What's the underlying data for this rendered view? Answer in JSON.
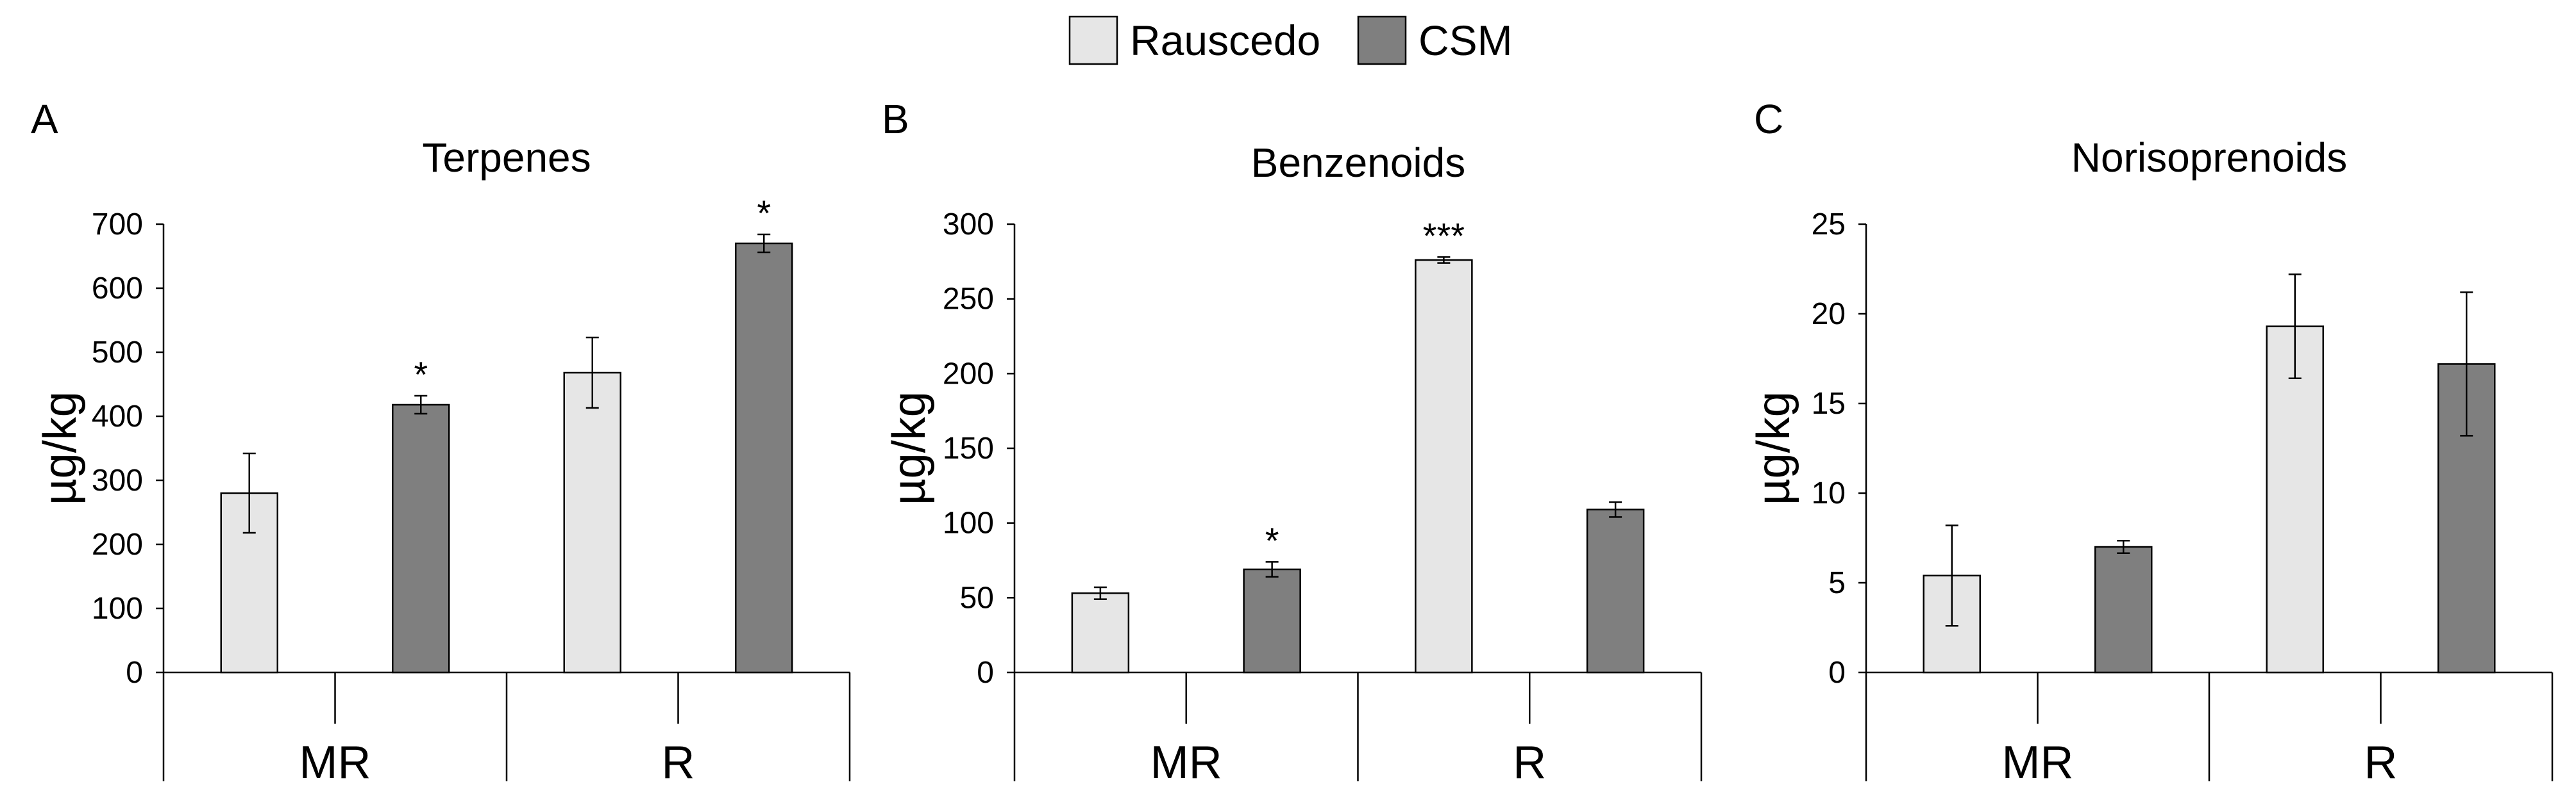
{
  "legend": {
    "items": [
      {
        "label": "Rauscedo",
        "color": "#e6e6e6"
      },
      {
        "label": "CSM",
        "color": "#7f7f7f"
      }
    ]
  },
  "chart_data": [
    {
      "panel": "A",
      "type": "bar",
      "title": "Terpenes",
      "ylabel": "µg/kg",
      "xlabel": "",
      "ylim": [
        0,
        700
      ],
      "yticks": [
        0,
        100,
        200,
        300,
        400,
        500,
        600,
        700
      ],
      "categories": [
        "MR",
        "R"
      ],
      "series": [
        {
          "name": "Rauscedo",
          "values": [
            280,
            468
          ],
          "errors": [
            62,
            55
          ],
          "significance": [
            "",
            ""
          ]
        },
        {
          "name": "CSM",
          "values": [
            418,
            670
          ],
          "errors": [
            14,
            14
          ],
          "significance": [
            "*",
            "*"
          ]
        }
      ]
    },
    {
      "panel": "B",
      "type": "bar",
      "title": "Benzenoids",
      "ylabel": "µg/kg",
      "xlabel": "",
      "ylim": [
        0,
        300
      ],
      "yticks": [
        0,
        50,
        100,
        150,
        200,
        250,
        300
      ],
      "categories": [
        "MR",
        "R"
      ],
      "series": [
        {
          "name": "Rauscedo",
          "values": [
            53,
            276
          ],
          "errors": [
            4,
            2
          ],
          "significance": [
            "",
            "***"
          ]
        },
        {
          "name": "CSM",
          "values": [
            69,
            109
          ],
          "errors": [
            5,
            5
          ],
          "significance": [
            "*",
            ""
          ]
        }
      ]
    },
    {
      "panel": "C",
      "type": "bar",
      "title": "Norisoprenoids",
      "ylabel": "µg/kg",
      "xlabel": "",
      "ylim": [
        0,
        25
      ],
      "yticks": [
        0,
        5,
        10,
        15,
        20,
        25
      ],
      "categories": [
        "MR",
        "R"
      ],
      "series": [
        {
          "name": "Rauscedo",
          "values": [
            5.4,
            19.3
          ],
          "errors": [
            2.8,
            2.9
          ],
          "significance": [
            "",
            ""
          ]
        },
        {
          "name": "CSM",
          "values": [
            7.0,
            17.2
          ],
          "errors": [
            0.35,
            4.0
          ],
          "significance": [
            "",
            ""
          ]
        }
      ]
    }
  ]
}
